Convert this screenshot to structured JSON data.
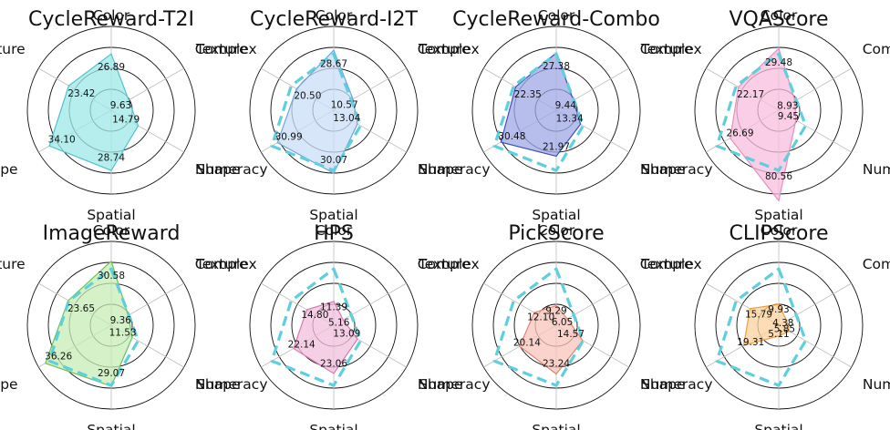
{
  "chart_data": [
    {
      "type": "radar",
      "title": "CycleReward-T2I",
      "axes": [
        "Color",
        "Complex",
        "Numeracy",
        "Spatial",
        "Shape",
        "Texture"
      ],
      "series": [
        {
          "values": [
            26.89,
            9.63,
            14.79,
            28.74,
            34.1,
            23.42
          ],
          "fill": "#9ee8e8",
          "stroke": "#4fc3cf"
        }
      ],
      "labels": [
        "26.89",
        "9.63",
        "14.79",
        "28.74",
        "34.10",
        "23.42"
      ],
      "rlim": [
        0,
        40
      ]
    },
    {
      "type": "radar",
      "title": "CycleReward-I2T",
      "axes": [
        "Color",
        "Complex",
        "Numeracy",
        "Spatial",
        "Shape",
        "Texture"
      ],
      "series": [
        {
          "values": [
            28.67,
            10.57,
            13.04,
            30.07,
            30.99,
            20.5
          ],
          "fill": "#c9def7",
          "stroke": "#6fa5de"
        }
      ],
      "reference": [
        26.89,
        9.63,
        14.79,
        28.74,
        34.1,
        23.42
      ],
      "labels": [
        "28.67",
        "10.57",
        "13.04",
        "30.07",
        "30.99",
        "20.50"
      ],
      "rlim": [
        0,
        40
      ]
    },
    {
      "type": "radar",
      "title": "CycleReward-Combo",
      "axes": [
        "Color",
        "Complex",
        "Numeracy",
        "Spatial",
        "Shape",
        "Texture"
      ],
      "series": [
        {
          "values": [
            27.38,
            9.44,
            13.34,
            21.97,
            30.48,
            22.35
          ],
          "fill": "#9fa8e6",
          "stroke": "#3d4fb8"
        }
      ],
      "reference": [
        26.89,
        9.63,
        14.79,
        28.74,
        34.1,
        23.42
      ],
      "labels": [
        "27.38",
        "9.44",
        "13.34",
        "21.97",
        "30.48",
        "22.35"
      ],
      "rlim": [
        0,
        40
      ]
    },
    {
      "type": "radar",
      "title": "VQAScore",
      "axes": [
        "Color",
        "Complex",
        "Numeracy",
        "Spatial",
        "Shape",
        "Texture"
      ],
      "series": [
        {
          "values": [
            29.48,
            8.93,
            9.45,
            80.56,
            26.69,
            22.17
          ],
          "fill": "#f7bddd",
          "stroke": "#e58fc0"
        }
      ],
      "reference": [
        26.89,
        9.63,
        14.79,
        28.74,
        34.1,
        23.42
      ],
      "labels": [
        "29.48",
        "8.93",
        "9.45",
        "80.56",
        "26.69",
        "22.17"
      ],
      "rlim": [
        0,
        40
      ]
    },
    {
      "type": "radar",
      "title": "ImageReward",
      "axes": [
        "Color",
        "Complex",
        "Numeracy",
        "Spatial",
        "Shape",
        "Texture"
      ],
      "series": [
        {
          "values": [
            30.58,
            9.36,
            11.53,
            29.07,
            36.26,
            23.65
          ],
          "fill": "#c6ecb6",
          "stroke": "#6cc25a"
        }
      ],
      "reference": [
        26.89,
        9.63,
        14.79,
        28.74,
        34.1,
        23.42
      ],
      "labels": [
        "30.58",
        "9.36",
        "11.53",
        "29.07",
        "36.26",
        "23.65"
      ],
      "rlim": [
        0,
        40
      ]
    },
    {
      "type": "radar",
      "title": "HPS",
      "axes": [
        "Color",
        "Complex",
        "Numeracy",
        "Spatial",
        "Shape",
        "Texture"
      ],
      "series": [
        {
          "values": [
            11.39,
            5.16,
            13.09,
            23.06,
            22.14,
            14.8
          ],
          "fill": "#f2bfdc",
          "stroke": "#d97ab3"
        }
      ],
      "reference": [
        26.89,
        9.63,
        14.79,
        28.74,
        34.1,
        23.42
      ],
      "labels": [
        "11.39",
        "5.16",
        "13.09",
        "23.06",
        "22.14",
        "14.80"
      ],
      "rlim": [
        0,
        40
      ]
    },
    {
      "type": "radar",
      "title": "PickScore",
      "axes": [
        "Color",
        "Complex",
        "Numeracy",
        "Spatial",
        "Shape",
        "Texture"
      ],
      "series": [
        {
          "values": [
            9.29,
            6.05,
            14.57,
            23.24,
            20.14,
            12.1
          ],
          "fill": "#f7c4bb",
          "stroke": "#e28672"
        }
      ],
      "reference": [
        26.89,
        9.63,
        14.79,
        28.74,
        34.1,
        23.42
      ],
      "labels": [
        "9.29",
        "6.05",
        "14.57",
        "23.24",
        "20.14",
        "12.10"
      ],
      "rlim": [
        0,
        40
      ]
    },
    {
      "type": "radar",
      "title": "CLIPScore",
      "axes": [
        "Color",
        "Complex",
        "Numeracy",
        "Spatial",
        "Shape",
        "Texture"
      ],
      "series": [
        {
          "values": [
            9.93,
            4.38,
            5.85,
            5.11,
            19.31,
            15.79
          ],
          "fill": "#fbd29c",
          "stroke": "#ef9f3c"
        }
      ],
      "reference": [
        26.89,
        9.63,
        14.79,
        28.74,
        34.1,
        23.42
      ],
      "labels": [
        "9.93",
        "4.38",
        "5.85",
        "5.11",
        "19.31",
        "15.79"
      ],
      "rlim": [
        0,
        40
      ]
    }
  ],
  "style": {
    "reference_color": "#5ecfdc",
    "ring_color": "#111111",
    "spoke_color": "#bdbdbd"
  }
}
